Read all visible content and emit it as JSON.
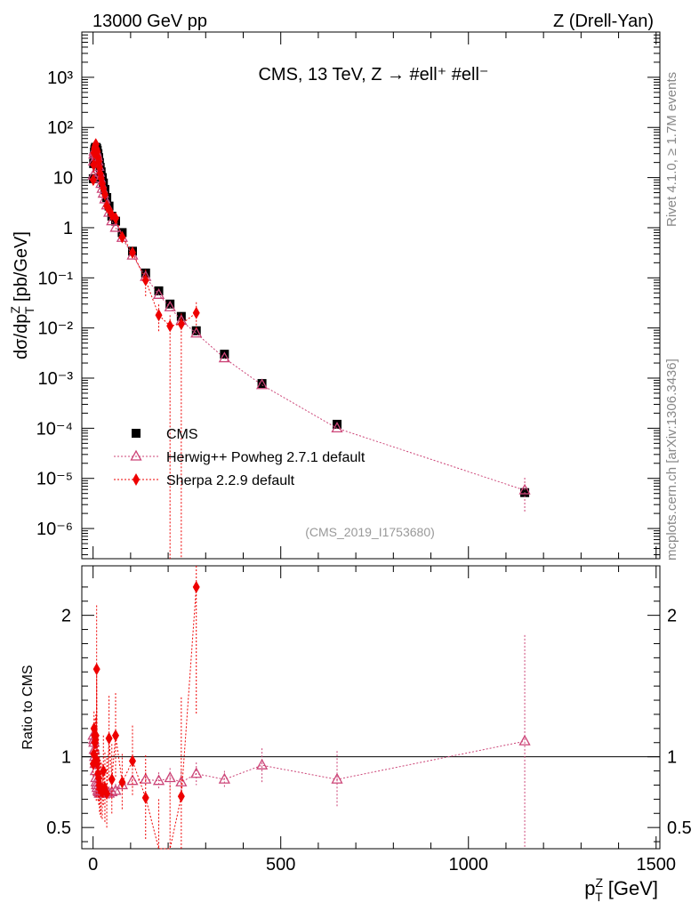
{
  "header": {
    "left": "13000 GeV pp",
    "right": "Z (Drell-Yan)"
  },
  "side": {
    "rivet": "Rivet 4.1.0, ≥ 1.7M events",
    "mcplots": "mcplots.cern.ch [arXiv:1306.3436]"
  },
  "chart_data": [
    {
      "type": "scatter",
      "panel": "main",
      "title": "CMS, 13 TeV, Z →  #ell⁺ #ell⁻",
      "analysis_label": "(CMS_2019_I1753680)",
      "ylabel": "dσ/dp_T^Z [pb/GeV]",
      "yscale": "log",
      "ylim": [
        2.5e-07,
        8000
      ],
      "xlim": [
        -30,
        1510
      ],
      "y_tick_labels": [
        "10⁻⁶",
        "10⁻⁵",
        "10⁻⁴",
        "10⁻³",
        "10⁻²",
        "10⁻¹",
        "1",
        "10",
        "10²",
        "10³"
      ],
      "legend": {
        "position": "lower-left",
        "entries": [
          "CMS",
          "Herwig++ Powheg 2.7.1 default",
          "Sherpa 2.2.9 default"
        ]
      },
      "series": [
        {
          "name": "CMS",
          "marker": "square",
          "color": "#000000",
          "x": [
            0.5,
            1.5,
            2.5,
            3.5,
            4.5,
            5.5,
            6.5,
            7.5,
            8.5,
            9.5,
            11,
            13,
            15,
            17,
            19,
            21.5,
            24.5,
            27.5,
            31.5,
            36.5,
            42.5,
            50,
            60,
            77.5,
            105,
            140,
            175,
            205,
            235,
            275,
            350,
            450,
            650,
            1150
          ],
          "y": [
            9.5,
            19,
            26,
            32,
            36,
            38,
            40,
            40,
            39,
            38,
            35,
            30,
            25,
            20,
            16,
            13,
            10,
            7.8,
            5.8,
            4.0,
            2.7,
            1.7,
            1.35,
            0.8,
            0.34,
            0.125,
            0.055,
            0.03,
            0.017,
            0.0088,
            0.003,
            0.00078,
            0.00012,
            5.2e-06
          ]
        },
        {
          "name": "Herwig++ Powheg 2.7.1 default",
          "marker": "open-triangle",
          "color": "#cc4477",
          "x": [
            0.5,
            1.5,
            2.5,
            3.5,
            4.5,
            5.5,
            6.5,
            7.5,
            8.5,
            9.5,
            11,
            13,
            15,
            17,
            19,
            21.5,
            24.5,
            27.5,
            31.5,
            36.5,
            42.5,
            50,
            60,
            77.5,
            105,
            140,
            175,
            205,
            235,
            275,
            350,
            450,
            650,
            1150
          ],
          "y": [
            11,
            21,
            29,
            33,
            35,
            35,
            35,
            33,
            31,
            29,
            26,
            21,
            16.5,
            12.5,
            9.6,
            7.5,
            6.0,
            4.8,
            3.7,
            2.8,
            2.0,
            1.35,
            1.0,
            0.63,
            0.28,
            0.105,
            0.046,
            0.026,
            0.014,
            0.0078,
            0.0025,
            0.00073,
            0.0001,
            5.8e-06
          ]
        },
        {
          "name": "Sherpa 2.2.9 default",
          "marker": "diamond",
          "color": "#ee0000",
          "x": [
            0.5,
            1.5,
            2.5,
            3.5,
            4.5,
            5.5,
            6.5,
            7.5,
            8.5,
            9.5,
            11,
            13,
            15,
            17,
            19,
            21.5,
            24.5,
            27.5,
            31.5,
            36.5,
            42.5,
            50,
            60,
            77.5,
            105,
            140,
            175,
            205,
            235,
            275
          ],
          "y": [
            9.0,
            18,
            31,
            37,
            40,
            42,
            45,
            46,
            38,
            36,
            33,
            25,
            21,
            16,
            12,
            9.6,
            7.5,
            6.0,
            4.6,
            2.7,
            2.3,
            1.8,
            1.55,
            0.65,
            0.32,
            0.09,
            0.018,
            0.011,
            0.012,
            0.02
          ]
        }
      ]
    },
    {
      "type": "scatter",
      "panel": "ratio",
      "ylabel": "Ratio to CMS",
      "xlabel": "p_T^Z [GeV]",
      "ylim": [
        0.35,
        2.35
      ],
      "xlim": [
        -30,
        1510
      ],
      "x_tick_labels": [
        "0",
        "500",
        "1000",
        "1500"
      ],
      "y_tick_labels": [
        "0.5",
        "1",
        "2"
      ],
      "reference_line": 1.0,
      "series": [
        {
          "name": "Herwig++ Powheg 2.7.1 default",
          "x": [
            0.5,
            1.5,
            2.5,
            3.5,
            4.5,
            5.5,
            6.5,
            7.5,
            8.5,
            9.5,
            11,
            13,
            15,
            17,
            19,
            21.5,
            24.5,
            27.5,
            31.5,
            36.5,
            42.5,
            50,
            60,
            77.5,
            105,
            140,
            175,
            205,
            235,
            275,
            350,
            450,
            650,
            1150
          ],
          "y": [
            1.15,
            1.12,
            1.1,
            1.05,
            1.0,
            0.95,
            0.9,
            0.85,
            0.82,
            0.8,
            0.78,
            0.76,
            0.75,
            0.74,
            0.74,
            0.75,
            0.76,
            0.76,
            0.75,
            0.74,
            0.74,
            0.75,
            0.76,
            0.8,
            0.83,
            0.84,
            0.83,
            0.85,
            0.82,
            0.88,
            0.84,
            0.94,
            0.84,
            1.11
          ],
          "y_err": [
            0.05,
            0.05,
            0.05,
            0.05,
            0.05,
            0.05,
            0.05,
            0.05,
            0.05,
            0.05,
            0.05,
            0.05,
            0.05,
            0.05,
            0.05,
            0.05,
            0.05,
            0.05,
            0.05,
            0.05,
            0.05,
            0.05,
            0.05,
            0.05,
            0.04,
            0.05,
            0.06,
            0.07,
            0.08,
            0.08,
            0.06,
            0.12,
            0.2,
            0.75
          ]
        },
        {
          "name": "Sherpa 2.2.9 default",
          "x": [
            0.5,
            1.5,
            2.5,
            3.5,
            4.5,
            5.5,
            6.5,
            7.5,
            8.5,
            9.5,
            11,
            13,
            15,
            17,
            19,
            21.5,
            24.5,
            27.5,
            31.5,
            36.5,
            42.5,
            50,
            60,
            77.5,
            105,
            140,
            175,
            205,
            235,
            275
          ],
          "y": [
            0.95,
            1.02,
            1.2,
            1.15,
            1.1,
            1.1,
            1.12,
            1.15,
            0.98,
            1.62,
            0.95,
            0.88,
            0.85,
            0.8,
            0.78,
            0.76,
            0.75,
            0.9,
            0.78,
            0.74,
            1.13,
            0.84,
            1.15,
            0.82,
            0.97,
            0.71,
            0.3,
            0.3,
            0.72,
            2.2
          ],
          "y_err": [
            0.1,
            0.1,
            0.12,
            0.12,
            0.12,
            0.12,
            0.15,
            0.15,
            0.3,
            0.45,
            0.2,
            0.2,
            0.2,
            0.2,
            0.2,
            0.2,
            0.2,
            0.25,
            0.25,
            0.25,
            0.3,
            0.25,
            0.3,
            0.2,
            0.25,
            0.3,
            0.4,
            0.5,
            0.7,
            0.9
          ]
        }
      ]
    }
  ]
}
